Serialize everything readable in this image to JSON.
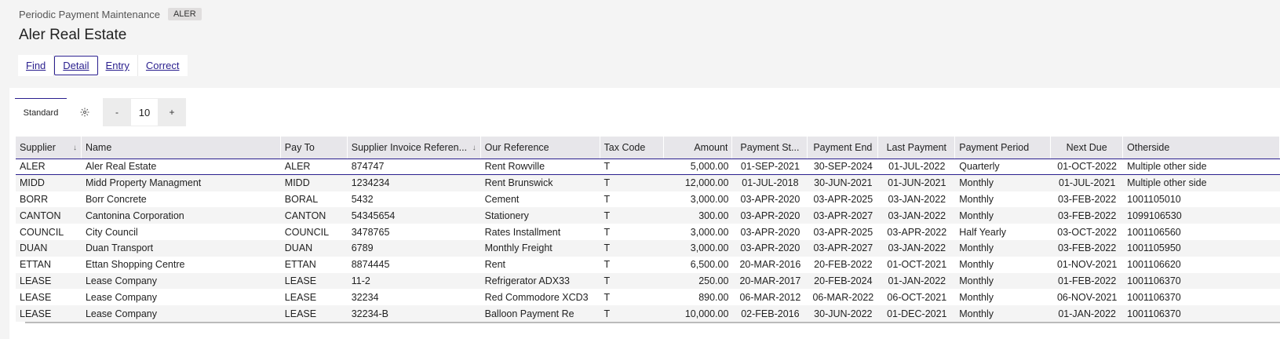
{
  "header": {
    "breadcrumb": "Periodic Payment Maintenance",
    "code": "ALER",
    "title": "Aler Real Estate"
  },
  "actions": [
    {
      "label": "Find",
      "selected": false
    },
    {
      "label": "Detail",
      "selected": true
    },
    {
      "label": "Entry",
      "selected": false
    },
    {
      "label": "Correct",
      "selected": false
    }
  ],
  "toolbar": {
    "view_tab": "Standard",
    "gear_icon": "gear-icon",
    "minus": "-",
    "page_size": "10",
    "plus": "+"
  },
  "columns": [
    {
      "label": "Supplier",
      "sortable": true
    },
    {
      "label": "Name"
    },
    {
      "label": "Pay To"
    },
    {
      "label": "Supplier Invoice Referen...",
      "sortable": true
    },
    {
      "label": "Our Reference"
    },
    {
      "label": "Tax Code"
    },
    {
      "label": "Amount"
    },
    {
      "label": "Payment St..."
    },
    {
      "label": "Payment End"
    },
    {
      "label": "Last Payment"
    },
    {
      "label": "Payment Period"
    },
    {
      "label": "Next Due"
    },
    {
      "label": "Otherside"
    }
  ],
  "sort_icon": "↓",
  "rows": [
    [
      "ALER",
      "Aler Real Estate",
      "ALER",
      "874747",
      "Rent Rowville",
      "T",
      "5,000.00",
      "01-SEP-2021",
      "30-SEP-2024",
      "01-JUL-2022",
      "Quarterly",
      "01-OCT-2022",
      "Multiple other side"
    ],
    [
      "MIDD",
      "Midd Property Managment",
      "MIDD",
      "1234234",
      "Rent Brunswick",
      "T",
      "12,000.00",
      "01-JUL-2018",
      "30-JUN-2021",
      "01-JUN-2021",
      "Monthly",
      "01-JUL-2021",
      "Multiple other side"
    ],
    [
      "BORR",
      "Borr  Concrete",
      "BORAL",
      "5432",
      "Cement",
      "T",
      "3,000.00",
      "03-APR-2020",
      "03-APR-2025",
      "03-JAN-2022",
      "Monthly",
      "03-FEB-2022",
      "1001105010"
    ],
    [
      "CANTON",
      "Cantonina Corporation",
      "CANTON",
      "54345654",
      "Stationery",
      "T",
      "300.00",
      "03-APR-2020",
      "03-APR-2027",
      "03-JAN-2022",
      "Monthly",
      "03-FEB-2022",
      "1099106530"
    ],
    [
      "COUNCIL",
      "City Council",
      "COUNCIL",
      "3478765",
      "Rates Installment",
      "T",
      "3,000.00",
      "03-APR-2020",
      "03-APR-2025",
      "03-APR-2022",
      "Half Yearly",
      "03-OCT-2022",
      "1001106560"
    ],
    [
      "DUAN",
      "Duan Transport",
      "DUAN",
      "6789",
      "Monthly Freight",
      "T",
      "3,000.00",
      "03-APR-2020",
      "03-APR-2027",
      "03-JAN-2022",
      "Monthly",
      "03-FEB-2022",
      "1001105950"
    ],
    [
      "ETTAN",
      "Ettan  Shopping Centre",
      "ETTAN",
      "8874445",
      "Rent",
      "T",
      "6,500.00",
      "20-MAR-2016",
      "20-FEB-2022",
      "01-OCT-2021",
      "Monthly",
      "01-NOV-2021",
      "1001106620"
    ],
    [
      "LEASE",
      "Lease Company",
      "LEASE",
      "11-2",
      "Refrigerator ADX33",
      "T",
      "250.00",
      "20-MAR-2017",
      "20-FEB-2024",
      "01-JAN-2022",
      "Monthly",
      "01-FEB-2022",
      "1001106370"
    ],
    [
      "LEASE",
      "Lease Company",
      "LEASE",
      "32234",
      "Red Commodore XCD3",
      "T",
      "890.00",
      "06-MAR-2012",
      "06-MAR-2022",
      "06-OCT-2021",
      "Monthly",
      "06-NOV-2021",
      "1001106370"
    ],
    [
      "LEASE",
      "Lease Company",
      "LEASE",
      "32234-B",
      "Balloon Payment Re",
      "T",
      "10,000.00",
      "02-FEB-2016",
      "30-JUN-2022",
      "01-DEC-2021",
      "Monthly",
      "01-JAN-2022",
      "1001106370"
    ]
  ]
}
